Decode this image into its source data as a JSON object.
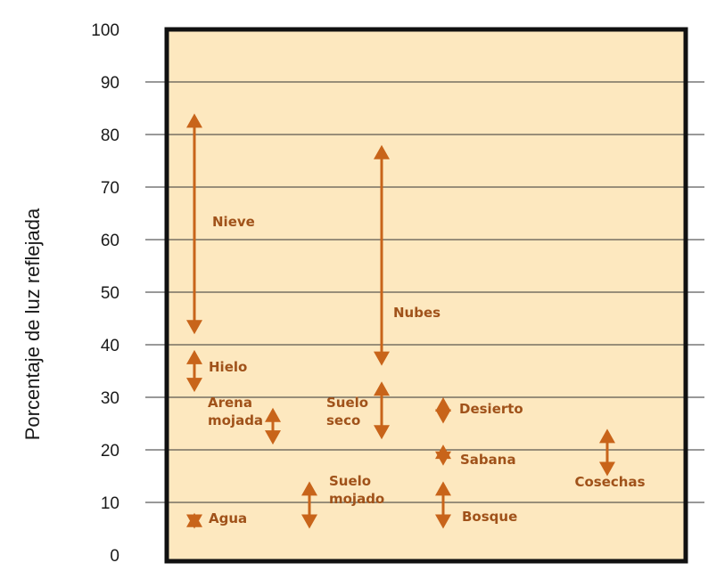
{
  "chart_data": {
    "type": "range",
    "title": "",
    "xlabel": "",
    "ylabel": "Porcentaje de luz reflejada",
    "ylim": [
      0,
      100
    ],
    "yticks": [
      0,
      10,
      20,
      30,
      40,
      50,
      60,
      70,
      80,
      90,
      100
    ],
    "grid": true,
    "colors": {
      "plot_bg": "#fde8bf",
      "frame": "#111111",
      "arrow": "#c8641a",
      "label": "#a0521a"
    },
    "series": [
      {
        "label": "Nieve",
        "min": 42,
        "max": 84
      },
      {
        "label": "Hielo",
        "min": 31,
        "max": 39
      },
      {
        "label": "Arena mojada",
        "min": 21,
        "max": 28
      },
      {
        "label": "Agua",
        "min": 5,
        "max": 8
      },
      {
        "label": "Suelo mojado",
        "min": 5,
        "max": 14
      },
      {
        "label": "Nubes",
        "min": 36,
        "max": 78
      },
      {
        "label": "Suelo seco",
        "min": 22,
        "max": 33
      },
      {
        "label": "Desierto",
        "min": 25,
        "max": 30
      },
      {
        "label": "Sabana",
        "min": 17,
        "max": 21
      },
      {
        "label": "Bosque",
        "min": 5,
        "max": 14
      },
      {
        "label": "Cosechas",
        "min": 15,
        "max": 24
      }
    ]
  }
}
